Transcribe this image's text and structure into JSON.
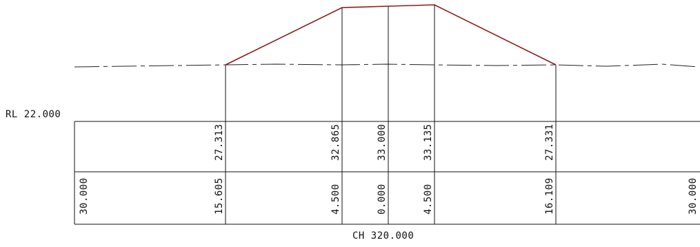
{
  "datum": {
    "label": "RL 22.000"
  },
  "chainage": {
    "label": "CH 320.000"
  },
  "row_levels": [
    "27.313",
    "32.865",
    "33.000",
    "33.135",
    "27.331"
  ],
  "row_offsets": [
    "30.000",
    "15.605",
    "4.500",
    "0.000",
    "4.500",
    "16.109",
    "30.000"
  ],
  "colors": {
    "design_profile": "#8b1a1a",
    "ground_profile": "#222222",
    "text": "#111111"
  }
}
